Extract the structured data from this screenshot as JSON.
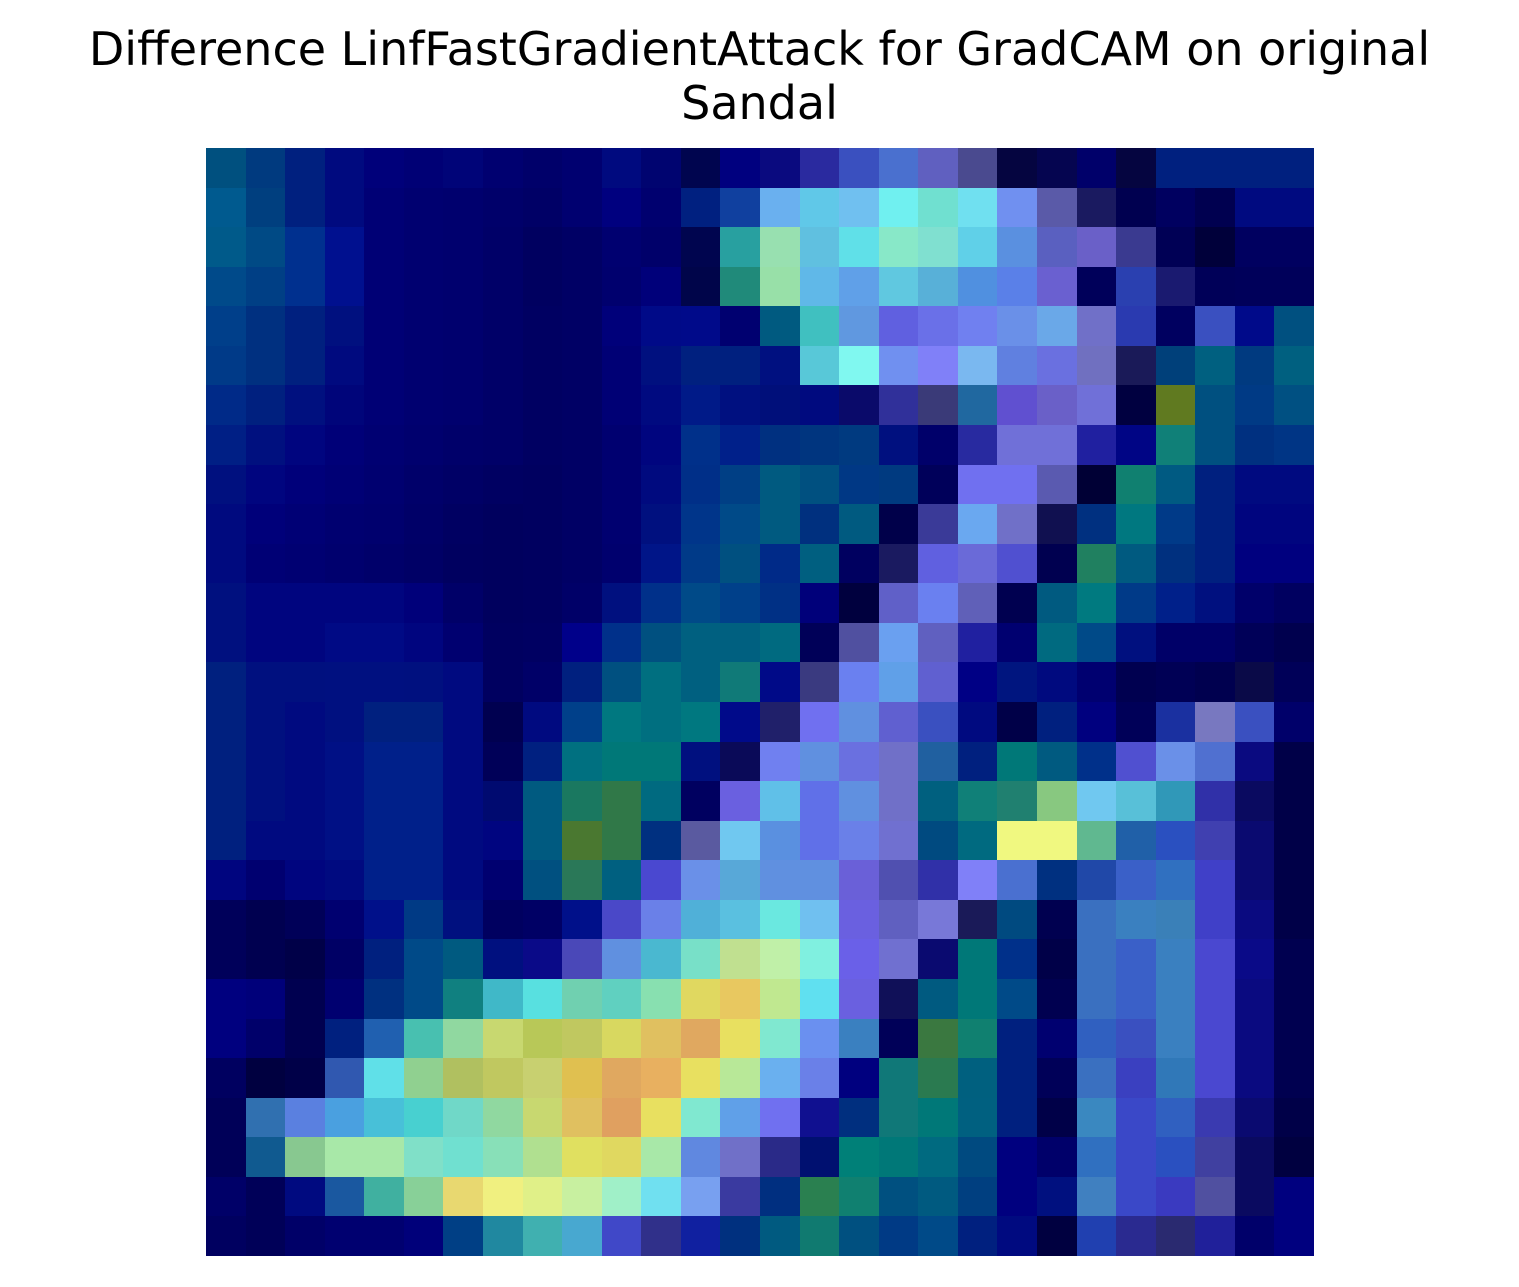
{
  "title": {
    "line1": "Difference LinfFastGradientAttack for GradCAM on original",
    "line2": "Sandal"
  },
  "image": {
    "rows": 28,
    "cols": 28,
    "cells": [
      [
        "#00507f",
        "#003a7f",
        "#00207f",
        "#000a7f",
        "#00007a",
        "#000075",
        "#000478",
        "#000070",
        "#00006a",
        "#000070",
        "#000a7f",
        "#000470",
        "#00054f",
        "#00007f",
        "#0a0a7f",
        "#2a2a9f",
        "#3a50bf",
        "#4a70cf",
        "#6060c0",
        "#4a4a8f",
        "#050540",
        "#050550",
        "#00006a",
        "#050540",
        "#00207f",
        "#00207f",
        "#00207f",
        "#00207f"
      ],
      [
        "#005a8f",
        "#003f7f",
        "#00207f",
        "#000a7f",
        "#000075",
        "#000070",
        "#00006e",
        "#00006a",
        "#000066",
        "#000070",
        "#00007f",
        "#00006f",
        "#002080",
        "#10409f",
        "#6ab0ef",
        "#60c8e8",
        "#70c0f0",
        "#70f0f0",
        "#70e0d0",
        "#70e0f0",
        "#7090f0",
        "#5a5aa8",
        "#1a1a60",
        "#000050",
        "#000060",
        "#000050",
        "#000a80",
        "#000a80"
      ],
      [
        "#005a8a",
        "#004a85",
        "#00308f",
        "#00108f",
        "#000075",
        "#000070",
        "#00006e",
        "#000068",
        "#000060",
        "#000065",
        "#000070",
        "#00006a",
        "#00054f",
        "#28a0a0",
        "#98e0b0",
        "#60c0e0",
        "#60e0e8",
        "#88e8c8",
        "#80e0d0",
        "#60d0e8",
        "#5a90e0",
        "#5a60c0",
        "#6a60c8",
        "#3a3a90",
        "#000055",
        "#00003a",
        "#000060",
        "#000060"
      ],
      [
        "#004a8a",
        "#003f85",
        "#00308f",
        "#00108f",
        "#000075",
        "#000070",
        "#00006e",
        "#000068",
        "#000060",
        "#000065",
        "#00006e",
        "#00007a",
        "#00054a",
        "#208a7a",
        "#98e0a8",
        "#60b8e8",
        "#60a0e8",
        "#60c8e0",
        "#58b0d8",
        "#5090e0",
        "#5a80e8",
        "#6a60d0",
        "#00005a",
        "#2a40b0",
        "#1a1a70",
        "#000058",
        "#00005a",
        "#00005a"
      ],
      [
        "#003f8a",
        "#003080",
        "#00207f",
        "#00107f",
        "#000075",
        "#000070",
        "#00006e",
        "#000068",
        "#000062",
        "#000065",
        "#00007a",
        "#000a88",
        "#000a8a",
        "#000070",
        "#005a80",
        "#40c0c0",
        "#6098e0",
        "#6060e0",
        "#6a70e8",
        "#7080f0",
        "#6a90e8",
        "#6aa8e8",
        "#7070c8",
        "#2a3ab0",
        "#000060",
        "#3a50c0",
        "#000a8a",
        "#005080"
      ],
      [
        "#003a88",
        "#003080",
        "#00207f",
        "#000a7f",
        "#000075",
        "#000070",
        "#00006e",
        "#000068",
        "#000062",
        "#000065",
        "#000075",
        "#00107f",
        "#00207f",
        "#00207f",
        "#001080",
        "#58c8d8",
        "#80f8f0",
        "#7090f0",
        "#8080f8",
        "#7ab8f0",
        "#6080e0",
        "#6a70e0",
        "#7070c0",
        "#1a1a58",
        "#00407a",
        "#006080",
        "#003a80",
        "#006080"
      ],
      [
        "#002a88",
        "#00207f",
        "#00107f",
        "#00057a",
        "#000075",
        "#000070",
        "#00006e",
        "#000068",
        "#000062",
        "#000065",
        "#000075",
        "#000a80",
        "#001a88",
        "#001080",
        "#000f7a",
        "#000a7f",
        "#0a0a6a",
        "#30309a",
        "#3a3a78",
        "#2068a0",
        "#6050d0",
        "#6a60c8",
        "#7070d8",
        "#000040",
        "#607a20",
        "#005080",
        "#003a85",
        "#005082"
      ],
      [
        "#001f85",
        "#00107f",
        "#00057f",
        "#000078",
        "#000072",
        "#00006e",
        "#00006a",
        "#000068",
        "#000062",
        "#000065",
        "#000070",
        "#00057f",
        "#00308a",
        "#00208a",
        "#003080",
        "#00357f",
        "#003a80",
        "#00107f",
        "#00006a",
        "#282aa0",
        "#7070d8",
        "#7070d8",
        "#2020a0",
        "#000585",
        "#108078",
        "#005080",
        "#003080",
        "#003585"
      ],
      [
        "#00107f",
        "#00057f",
        "#00007a",
        "#000075",
        "#000070",
        "#00006a",
        "#000066",
        "#000062",
        "#000060",
        "#000065",
        "#000070",
        "#000a7f",
        "#002f88",
        "#003f85",
        "#005a80",
        "#005080",
        "#003885",
        "#003a80",
        "#00005a",
        "#7070f0",
        "#7070f0",
        "#5a5ab0",
        "#000035",
        "#108070",
        "#005a82",
        "#00207f",
        "#000a80",
        "#000a80"
      ],
      [
        "#000a7f",
        "#00007a",
        "#000075",
        "#000070",
        "#00006e",
        "#000068",
        "#000062",
        "#00005e",
        "#000060",
        "#000065",
        "#000070",
        "#00107f",
        "#00358a",
        "#004a88",
        "#005a80",
        "#00307f",
        "#005a80",
        "#00004a",
        "#3a3a98",
        "#6aa8f0",
        "#7070c8",
        "#101050",
        "#003080",
        "#007880",
        "#003a88",
        "#00207f",
        "#00057f",
        "#00057f"
      ],
      [
        "#000a7f",
        "#000075",
        "#000072",
        "#00006e",
        "#00006a",
        "#000066",
        "#000060",
        "#00005e",
        "#000060",
        "#000065",
        "#00006e",
        "#001588",
        "#003a88",
        "#005080",
        "#002a88",
        "#005f80",
        "#000060",
        "#1a1a60",
        "#6060e0",
        "#6a6ad8",
        "#5050d0",
        "#000050",
        "#208060",
        "#005a80",
        "#00307f",
        "#00207f",
        "#00007f",
        "#00007f"
      ],
      [
        "#00107f",
        "#00057f",
        "#00057f",
        "#00057f",
        "#00057f",
        "#00007a",
        "#000068",
        "#00005e",
        "#000060",
        "#000068",
        "#00107f",
        "#00308a",
        "#004a88",
        "#00408a",
        "#003085",
        "#00007a",
        "#00003e",
        "#6060c8",
        "#6a80f0",
        "#6060b8",
        "#000050",
        "#005a80",
        "#007a80",
        "#003a88",
        "#00208a",
        "#00107f",
        "#00006a",
        "#000060"
      ],
      [
        "#00107f",
        "#00057f",
        "#00057f",
        "#000a85",
        "#000a85",
        "#00057f",
        "#000070",
        "#000060",
        "#000062",
        "#00008a",
        "#00308a",
        "#005080",
        "#006080",
        "#006080",
        "#006a80",
        "#000058",
        "#5050a0",
        "#6aa0f0",
        "#6060c0",
        "#2020a0",
        "#000070",
        "#006a80",
        "#004a88",
        "#00107f",
        "#000068",
        "#000068",
        "#000058",
        "#00004e"
      ],
      [
        "#00207f",
        "#00107f",
        "#00107f",
        "#001080",
        "#001080",
        "#00107f",
        "#000a80",
        "#000060",
        "#000068",
        "#00207f",
        "#005080",
        "#006f80",
        "#006080",
        "#107a78",
        "#000a88",
        "#3a3a80",
        "#6a80f0",
        "#60a0e8",
        "#6060d0",
        "#000085",
        "#00157f",
        "#000a7f",
        "#000070",
        "#000050",
        "#000055",
        "#00004f",
        "#0a0a48",
        "#000058"
      ],
      [
        "#00207f",
        "#00107f",
        "#000a80",
        "#001080",
        "#00207f",
        "#00207f",
        "#000a80",
        "#000050",
        "#000a80",
        "#00408a",
        "#007880",
        "#006f80",
        "#007880",
        "#000a8a",
        "#20206a",
        "#7070f0",
        "#6090e0",
        "#6060d0",
        "#3a50c0",
        "#000a80",
        "#000048",
        "#00207f",
        "#00007f",
        "#000058",
        "#1a30a0",
        "#7878c0",
        "#3a50c0",
        "#00006a"
      ],
      [
        "#00207f",
        "#00107f",
        "#000a80",
        "#001085",
        "#00208a",
        "#00208a",
        "#000a80",
        "#000058",
        "#002080",
        "#007080",
        "#007878",
        "#007878",
        "#00107f",
        "#0a0a58",
        "#7080f0",
        "#6090e0",
        "#6a70e0",
        "#7070c8",
        "#2060a0",
        "#00207f",
        "#007878",
        "#005a80",
        "#00308a",
        "#5050d0",
        "#6a90e8",
        "#5070d0",
        "#0a0a80",
        "#000048"
      ],
      [
        "#00207f",
        "#00107f",
        "#000a80",
        "#001085",
        "#00208a",
        "#00208a",
        "#000a80",
        "#000a70",
        "#005a80",
        "#1a7860",
        "#307848",
        "#006a80",
        "#000060",
        "#6a60e0",
        "#60c0e8",
        "#6070e8",
        "#6090e0",
        "#7070c8",
        "#00607f",
        "#108078",
        "#208070",
        "#88c880",
        "#70c8f0",
        "#58c0d8",
        "#3098b8",
        "#3030a8",
        "#0a0a60",
        "#000048"
      ],
      [
        "#00207f",
        "#000a80",
        "#000a80",
        "#001085",
        "#00208a",
        "#00208a",
        "#000a80",
        "#000580",
        "#005a80",
        "#4a7830",
        "#307848",
        "#003080",
        "#5a5aa0",
        "#70c8f0",
        "#5a90e0",
        "#6070e8",
        "#6a80e8",
        "#7070d0",
        "#004a80",
        "#006a80",
        "#f0f880",
        "#f0f880",
        "#60b890",
        "#2060a8",
        "#2a50c0",
        "#4040b0",
        "#0a0a70",
        "#000048"
      ],
      [
        "#00057f",
        "#000070",
        "#00057f",
        "#000a80",
        "#00208a",
        "#00208a",
        "#000a80",
        "#000070",
        "#005080",
        "#2a7858",
        "#006080",
        "#4a48d0",
        "#6a90e8",
        "#58a8d8",
        "#6090e0",
        "#6090e0",
        "#6a60d8",
        "#5050b0",
        "#3030a8",
        "#8080f8",
        "#4a70d0",
        "#003080",
        "#2048a8",
        "#3a60c8",
        "#3070c0",
        "#4040c8",
        "#0a0a70",
        "#000048"
      ],
      [
        "#00005a",
        "#000050",
        "#000058",
        "#000070",
        "#00108a",
        "#003a85",
        "#00107f",
        "#000060",
        "#000065",
        "#00108a",
        "#4a48c8",
        "#6a80e8",
        "#50b0d8",
        "#5ac0e0",
        "#6ae8e0",
        "#70c0f0",
        "#6a60e0",
        "#6060c0",
        "#7878d8",
        "#1a1a58",
        "#004a80",
        "#000050",
        "#3a70c0",
        "#3a80c0",
        "#3a80b8",
        "#4040c8",
        "#0a0a80",
        "#000048"
      ],
      [
        "#00005a",
        "#000050",
        "#000048",
        "#000065",
        "#00207f",
        "#004a88",
        "#005a80",
        "#00107f",
        "#0a0a88",
        "#4a48b8",
        "#6090e0",
        "#4ab8d0",
        "#78e0c8",
        "#c0e090",
        "#c0f0a8",
        "#80f0e0",
        "#6a60e8",
        "#7070d0",
        "#0a0a70",
        "#007878",
        "#00308a",
        "#000048",
        "#3a70c0",
        "#3a60c8",
        "#3a80c0",
        "#4a48d0",
        "#0a0a88",
        "#000050"
      ],
      [
        "#00007f",
        "#00007a",
        "#000050",
        "#000070",
        "#003080",
        "#004a88",
        "#108080",
        "#40b8c8",
        "#58e0e0",
        "#70d0b0",
        "#60d0c0",
        "#88e0b0",
        "#e0d860",
        "#e8c860",
        "#c0e890",
        "#60e0f0",
        "#6a60e0",
        "#101058",
        "#005a80",
        "#007878",
        "#004a88",
        "#000050",
        "#3a70c0",
        "#3a60c8",
        "#3a80c0",
        "#4a48d0",
        "#0a0a80",
        "#000050"
      ],
      [
        "#00007f",
        "#00006a",
        "#000050",
        "#00207f",
        "#2060b0",
        "#48c0b0",
        "#90d8a0",
        "#c8d870",
        "#b8c858",
        "#c0c860",
        "#d8d860",
        "#e0c060",
        "#e0a860",
        "#e8e060",
        "#80e8d0",
        "#6a90f0",
        "#3a80c0",
        "#000058",
        "#3a7840",
        "#108070",
        "#00207f",
        "#000070",
        "#3060c0",
        "#3a50c0",
        "#3a80c0",
        "#4a48d0",
        "#0a0a80",
        "#000050"
      ],
      [
        "#000060",
        "#000040",
        "#000048",
        "#3058b0",
        "#60e0e8",
        "#90d090",
        "#b0c060",
        "#c0c860",
        "#c8d070",
        "#e0c050",
        "#e0a860",
        "#e8b060",
        "#e8e060",
        "#b8e898",
        "#6ab0ef",
        "#6a80e8",
        "#00007f",
        "#107878",
        "#2a7a50",
        "#00607f",
        "#00207f",
        "#000058",
        "#3a70c0",
        "#3a40c0",
        "#3078b8",
        "#4a48d0",
        "#0a0a80",
        "#000050"
      ],
      [
        "#000058",
        "#3070b0",
        "#5a80e0",
        "#4aa0e0",
        "#48c0d8",
        "#48d0d0",
        "#70d8c8",
        "#90d8a0",
        "#c8d870",
        "#e0c060",
        "#e0a060",
        "#e8e060",
        "#80e8d0",
        "#60a0e8",
        "#7070f0",
        "#101090",
        "#002f7f",
        "#107878",
        "#007878",
        "#006080",
        "#00207f",
        "#000048",
        "#3a88c0",
        "#3a48c8",
        "#3060c0",
        "#3a3ab0",
        "#0a0a70",
        "#000048"
      ],
      [
        "#000058",
        "#105a90",
        "#88c890",
        "#a8e8a8",
        "#a8e8a8",
        "#80e0c8",
        "#70e0d0",
        "#88e0b8",
        "#b0e090",
        "#e0e060",
        "#e0d860",
        "#a8e8a8",
        "#6088e0",
        "#7070c8",
        "#2a2a88",
        "#001070",
        "#008078",
        "#007878",
        "#006a80",
        "#004a80",
        "#00007f",
        "#00006a",
        "#3070c0",
        "#3a48c8",
        "#2a50c0",
        "#4040a0",
        "#0a0a60",
        "#000040"
      ],
      [
        "#000068",
        "#000058",
        "#000a80",
        "#1a58a0",
        "#40b0a0",
        "#88d098",
        "#e8d870",
        "#f0f080",
        "#e0f088",
        "#c8f0a0",
        "#a0f0c8",
        "#70e0f0",
        "#78a0f0",
        "#3a3aa0",
        "#002f80",
        "#2a8050",
        "#108070",
        "#005080",
        "#005a80",
        "#003f80",
        "#00007f",
        "#00107f",
        "#4080c0",
        "#3a48c8",
        "#3a3ac0",
        "#5050a0",
        "#0a0a60",
        "#00007f"
      ],
      [
        "#000060",
        "#000058",
        "#000068",
        "#000070",
        "#000070",
        "#00007a",
        "#003f85",
        "#2088a0",
        "#40b0b0",
        "#48a8d0",
        "#4048c8",
        "#30308a",
        "#1020a0",
        "#00307f",
        "#005a80",
        "#107a70",
        "#005080",
        "#003a85",
        "#004a88",
        "#00207f",
        "#000a80",
        "#000040",
        "#2040b0",
        "#2a2a90",
        "#2a2a70",
        "#20209a",
        "#00006a",
        "#00007f"
      ]
    ]
  }
}
